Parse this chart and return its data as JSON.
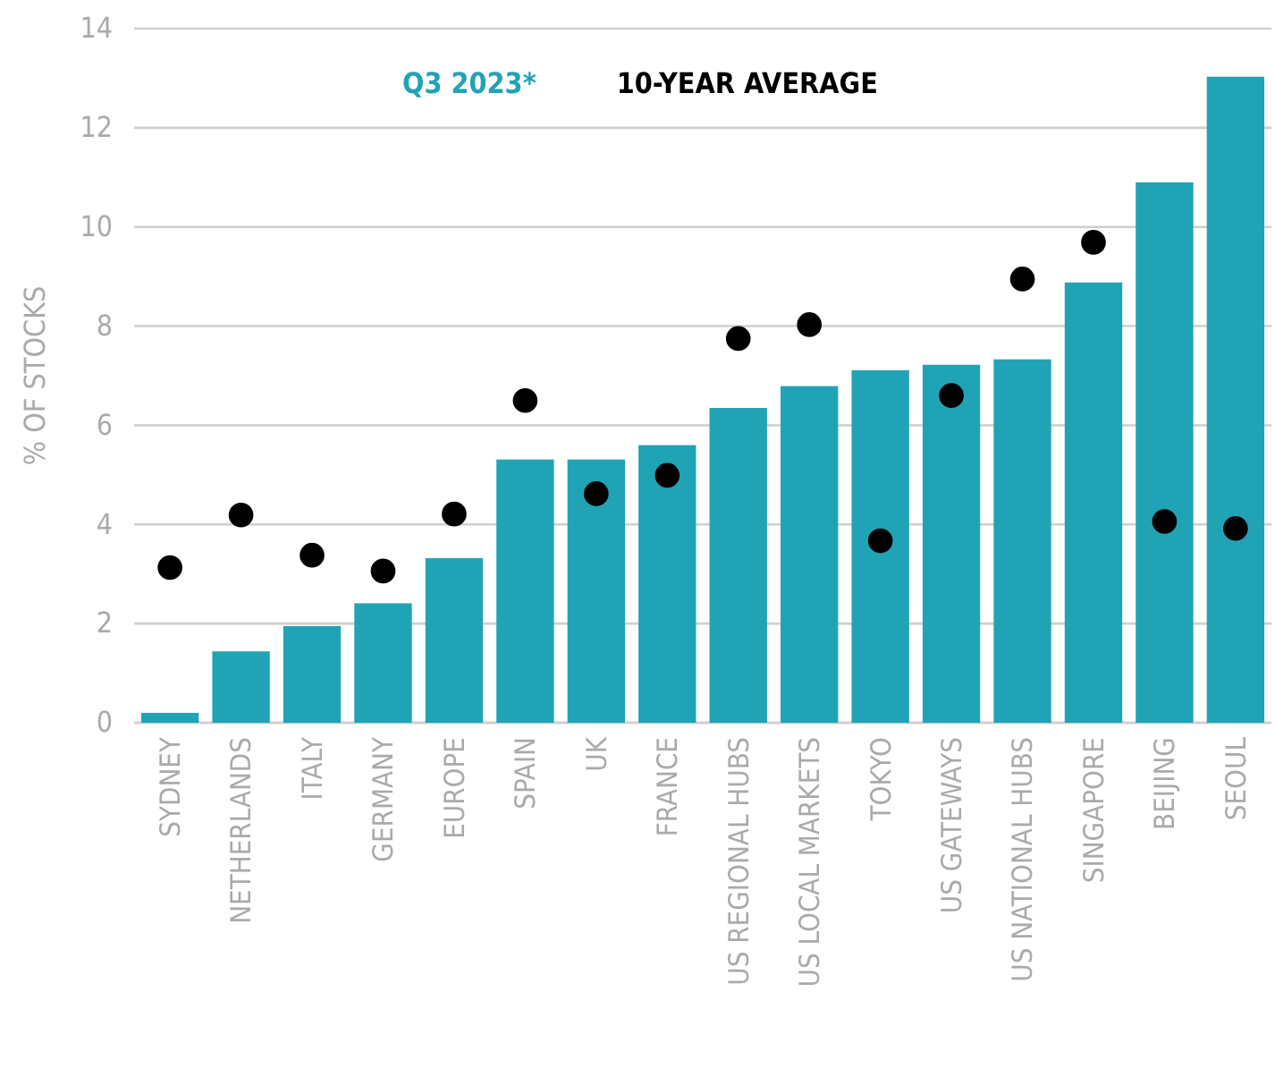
{
  "chart_data": {
    "type": "bar",
    "ylabel": "% OF STOCKS",
    "categories": [
      "SYDNEY",
      "NETHERLANDS",
      "ITALY",
      "GERMANY",
      "EUROPE",
      "SPAIN",
      "UK",
      "FRANCE",
      "US REGIONAL HUBS",
      "US LOCAL MARKETS",
      "TOKYO",
      "US GATEWAYS",
      "US NATIONAL HUBS",
      "SINGAPORE",
      "BEIJING",
      "SEOUL"
    ],
    "series": [
      {
        "name": "Q3 2023*",
        "color": "#21a3b6",
        "values": [
          0.2,
          1.44,
          1.95,
          2.41,
          3.32,
          5.31,
          5.31,
          5.6,
          6.35,
          6.79,
          7.11,
          7.22,
          7.33,
          8.88,
          10.9,
          13.03
        ]
      },
      {
        "name": "10-YEAR AVERAGE",
        "type": "scatter",
        "color": "#000000",
        "marker": "circle",
        "values": [
          3.13,
          4.19,
          3.38,
          3.06,
          4.21,
          6.5,
          4.62,
          4.99,
          7.75,
          8.03,
          3.67,
          6.6,
          8.95,
          9.69,
          4.06,
          3.92
        ]
      }
    ],
    "ylim": [
      0,
      14
    ],
    "yticks": [
      0,
      2,
      4,
      6,
      8,
      10,
      12,
      14
    ],
    "grid": "y",
    "legend": "top"
  }
}
